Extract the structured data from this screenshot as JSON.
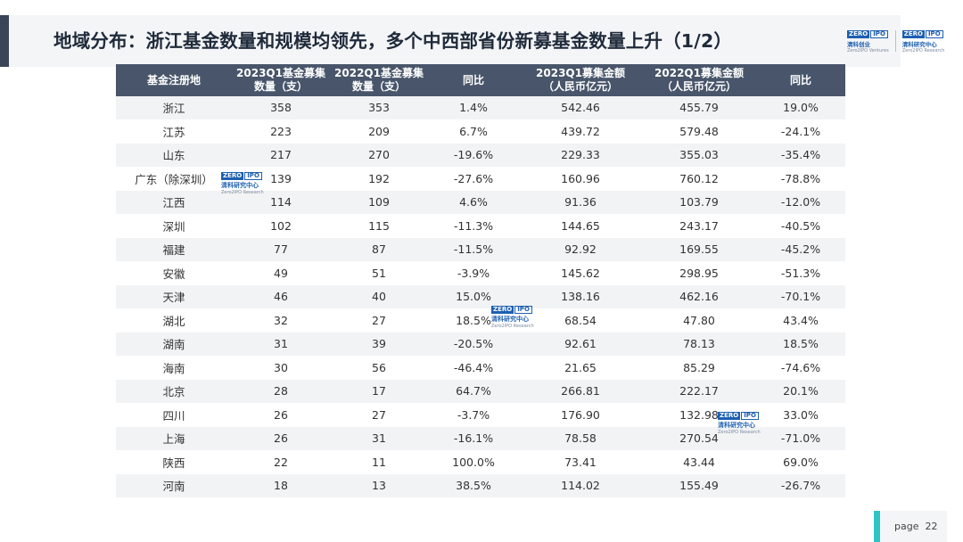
{
  "title": "地域分布：浙江基金数量和规模均领先，多个中西部省份新募基金数量上升（1/2）",
  "logo": {
    "zero": "ZERO",
    "ipo": "IPO",
    "cn": "清科创业",
    "en": "Zero2IPO Ventures"
  },
  "logo2": {
    "zero": "ZERO",
    "ipo": "IPO",
    "cn": "清科研究中心",
    "en": "Zero2IPO Research"
  },
  "watermark": {
    "zero": "ZERO",
    "ipo": "IPO",
    "cn": "清科研究中心",
    "en": "Zero2IPO Research"
  },
  "table": {
    "headers": [
      [
        "基金注册地",
        ""
      ],
      [
        "2023Q1基金募集",
        "数量（支）"
      ],
      [
        "2022Q1基金募集",
        "数量（支）"
      ],
      [
        "同比",
        ""
      ],
      [
        "2023Q1募集金额",
        "（人民币亿元）"
      ],
      [
        "2022Q1募集金额",
        "（人民币亿元）"
      ],
      [
        "同比",
        ""
      ]
    ],
    "rows": [
      [
        "浙江",
        "358",
        "353",
        "1.4%",
        "542.46",
        "455.79",
        "19.0%"
      ],
      [
        "江苏",
        "223",
        "209",
        "6.7%",
        "439.72",
        "579.48",
        "-24.1%"
      ],
      [
        "山东",
        "217",
        "270",
        "-19.6%",
        "229.33",
        "355.03",
        "-35.4%"
      ],
      [
        "广东（除深圳）",
        "139",
        "192",
        "-27.6%",
        "160.96",
        "760.12",
        "-78.8%"
      ],
      [
        "江西",
        "114",
        "109",
        "4.6%",
        "91.36",
        "103.79",
        "-12.0%"
      ],
      [
        "深圳",
        "102",
        "115",
        "-11.3%",
        "144.65",
        "243.17",
        "-40.5%"
      ],
      [
        "福建",
        "77",
        "87",
        "-11.5%",
        "92.92",
        "169.55",
        "-45.2%"
      ],
      [
        "安徽",
        "49",
        "51",
        "-3.9%",
        "145.62",
        "298.95",
        "-51.3%"
      ],
      [
        "天津",
        "46",
        "40",
        "15.0%",
        "138.16",
        "462.16",
        "-70.1%"
      ],
      [
        "湖北",
        "32",
        "27",
        "18.5%",
        "68.54",
        "47.80",
        "43.4%"
      ],
      [
        "湖南",
        "31",
        "39",
        "-20.5%",
        "92.61",
        "78.13",
        "18.5%"
      ],
      [
        "海南",
        "30",
        "56",
        "-46.4%",
        "21.65",
        "85.29",
        "-74.6%"
      ],
      [
        "北京",
        "28",
        "17",
        "64.7%",
        "266.81",
        "222.17",
        "20.1%"
      ],
      [
        "四川",
        "26",
        "27",
        "-3.7%",
        "176.90",
        "132.98",
        "33.0%"
      ],
      [
        "上海",
        "26",
        "31",
        "-16.1%",
        "78.58",
        "270.54",
        "-71.0%"
      ],
      [
        "陕西",
        "22",
        "11",
        "100.0%",
        "73.41",
        "43.44",
        "69.0%"
      ],
      [
        "河南",
        "18",
        "13",
        "38.5%",
        "114.02",
        "155.49",
        "-26.7%"
      ]
    ]
  },
  "footer": {
    "page_label": "page",
    "page_number": "22"
  }
}
